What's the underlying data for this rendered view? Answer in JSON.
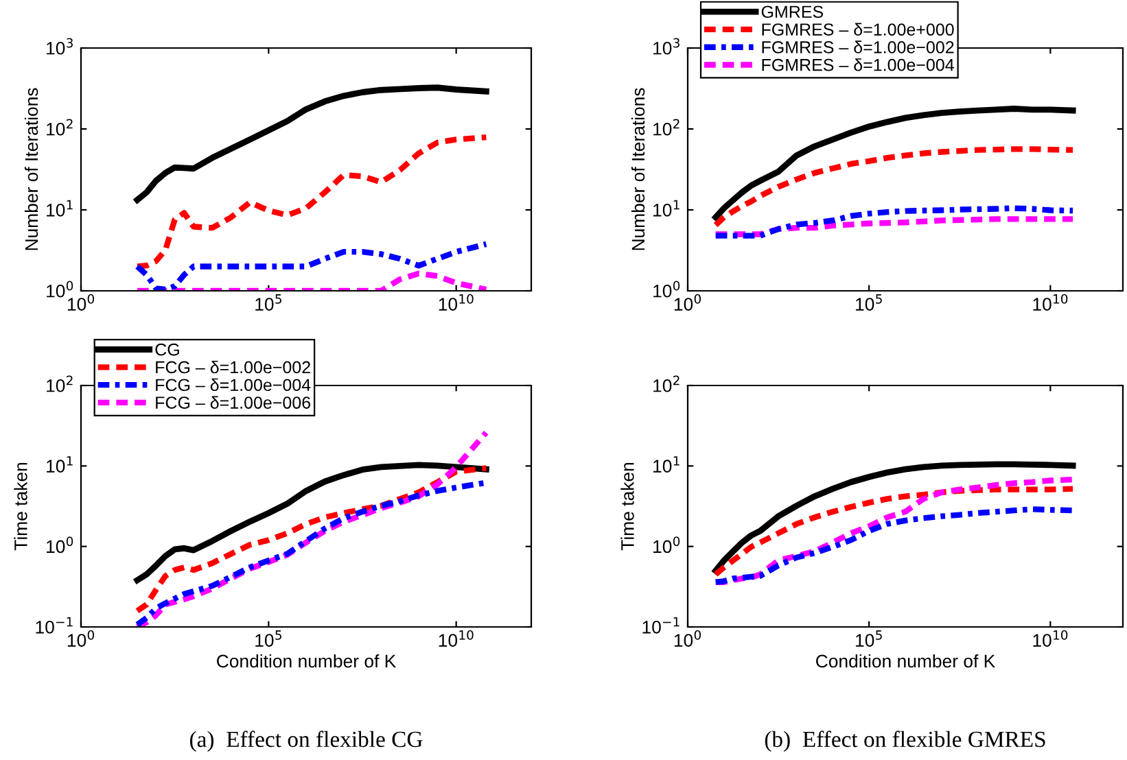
{
  "chart_data": [
    {
      "type": "line",
      "ylabel": "Number of Iterations",
      "log": "xy",
      "xlim": [
        1,
        1000000000000.0
      ],
      "ylim": [
        1,
        1000
      ],
      "xticks": [
        {
          "value": 1,
          "label": "10$^{0}$"
        },
        {
          "value": 100000,
          "label": "10$^{5}$"
        },
        {
          "value": 10000000000,
          "label": "10$^{10}$"
        }
      ],
      "yticks": [
        {
          "value": 1,
          "label": "10$^{0}$"
        },
        {
          "value": 10,
          "label": "10$^{1}$"
        },
        {
          "value": 100,
          "label": "10$^{2}$"
        },
        {
          "value": 1000,
          "label": "10$^{3}$"
        }
      ],
      "x": [
        31.6,
        56.2,
        100,
        178,
        316,
        562,
        1000,
        3162,
        10000,
        31623,
        100000,
        316228,
        1000000,
        3162278,
        10000000,
        31622777,
        100000000,
        316227766,
        1000000000,
        3162277660,
        10000000000,
        63000000000
      ],
      "series": [
        {
          "color": "#000000",
          "line_style": "solid",
          "values": [
            13.3,
            16.5,
            22.9,
            28.6,
            33.4,
            33,
            32.4,
            44,
            57,
            74,
            96,
            125,
            175,
            219,
            256,
            284,
            303,
            311,
            319,
            324,
            307,
            291
          ]
        },
        {
          "color": "#ff0000",
          "line_style": "dashed",
          "values": [
            2.0,
            2.05,
            2.33,
            3.2,
            7.6,
            9.2,
            6.2,
            6.0,
            8.1,
            12.4,
            9.8,
            8.6,
            10.5,
            16.5,
            27,
            26,
            22,
            31,
            50,
            68,
            74,
            79
          ]
        },
        {
          "color": "#0000ff",
          "line_style": "dashdot",
          "values": [
            2.0,
            1.58,
            1.07,
            1.04,
            1.14,
            1.58,
            2.0,
            2.0,
            2.0,
            2.0,
            2.0,
            2.0,
            2.0,
            2.49,
            3.03,
            3.03,
            2.84,
            2.49,
            2.05,
            2.49,
            3.03,
            3.78
          ]
        },
        {
          "color": "#ff00ff",
          "line_style": "dashed",
          "values": [
            1.0,
            1.0,
            1.0,
            1.0,
            1.0,
            1.0,
            1.0,
            1.0,
            1.0,
            1.0,
            1.0,
            1.0,
            1.0,
            1.0,
            1.0,
            1.0,
            1.0,
            1.39,
            1.64,
            1.52,
            1.25,
            1.04
          ]
        }
      ]
    },
    {
      "type": "line",
      "ylabel": "Number of Iterations",
      "log": "xy",
      "xlim": [
        1,
        1000000000000.0
      ],
      "ylim": [
        1,
        1000
      ],
      "legend": "top left",
      "xticks": [
        {
          "value": 1,
          "label": "10$^{0}$"
        },
        {
          "value": 100000,
          "label": "10$^{5}$"
        },
        {
          "value": 10000000000,
          "label": "10$^{10}$"
        }
      ],
      "yticks": [
        {
          "value": 1,
          "label": "10$^{0}$"
        },
        {
          "value": 10,
          "label": "10$^{1}$"
        },
        {
          "value": 100,
          "label": "10$^{2}$"
        },
        {
          "value": 1000,
          "label": "10$^{3}$"
        }
      ],
      "x": [
        5.9,
        10,
        17.8,
        31.6,
        56.2,
        100,
        316,
        1000,
        3162,
        10000,
        31623,
        100000,
        316228,
        1000000,
        3162278,
        10000000,
        31622777,
        100000000,
        316227766,
        1000000000,
        3162277660,
        10000000000,
        41700000000
      ],
      "series": [
        {
          "name": "GMRES",
          "color": "#000000",
          "line_style": "solid",
          "values": [
            8.1,
            10.5,
            13.2,
            16.5,
            20,
            22.9,
            29.7,
            47,
            61,
            74,
            90,
            107,
            122,
            137,
            148,
            158,
            164,
            169,
            173,
            178,
            173,
            173,
            169
          ]
        },
        {
          "name": "FGMRES – δ=1.00e+000",
          "color": "#ff0000",
          "line_style": "dashed",
          "values": [
            6.5,
            8.1,
            9.6,
            11.2,
            12.7,
            14.9,
            19.3,
            23.8,
            28.6,
            32.6,
            37,
            40,
            44,
            47,
            50,
            52,
            53.5,
            55,
            55.6,
            56.4,
            56.4,
            55.6,
            55
          ]
        },
        {
          "name": "FGMRES – δ=1.00e−002",
          "color": "#0000ff",
          "line_style": "dashdot",
          "values": [
            4.8,
            4.8,
            4.8,
            4.8,
            4.8,
            4.8,
            5.8,
            6.6,
            6.9,
            7.4,
            8.4,
            9.0,
            9.4,
            9.7,
            9.8,
            9.9,
            10.1,
            10.2,
            10.3,
            10.5,
            10.3,
            9.9,
            9.8
          ]
        },
        {
          "name": "FGMRES – δ=1.00e−004",
          "color": "#ff00ff",
          "line_style": "dashed",
          "values": [
            5.0,
            5.0,
            5.0,
            5.0,
            5.0,
            5.0,
            5.8,
            6.0,
            6.0,
            6.4,
            6.6,
            6.8,
            6.9,
            7.0,
            7.2,
            7.4,
            7.5,
            7.6,
            7.7,
            7.7,
            7.7,
            7.7,
            7.7
          ]
        }
      ]
    },
    {
      "type": "line",
      "ylabel": "Time taken",
      "xlabel": "Condition number of K",
      "log": "xy",
      "xlim": [
        1,
        1000000000000.0
      ],
      "ylim": [
        0.1,
        100
      ],
      "legend": "top left",
      "annotations": [
        "(a)  Effect on flexible CG"
      ],
      "xticks": [
        {
          "value": 1,
          "label": "10$^{0}$"
        },
        {
          "value": 100000,
          "label": "10$^{5}$"
        },
        {
          "value": 10000000000,
          "label": "10$^{10}$"
        }
      ],
      "yticks": [
        {
          "value": 0.1,
          "label": "10$^{−1}$"
        },
        {
          "value": 1,
          "label": "10$^{0}$"
        },
        {
          "value": 10,
          "label": "10$^{1}$"
        },
        {
          "value": 100,
          "label": "10$^{2}$"
        }
      ],
      "x": [
        31.6,
        56.2,
        100,
        178,
        316,
        562,
        1000,
        3162,
        10000,
        31623,
        100000,
        316228,
        1000000,
        3162278,
        10000000,
        31622777,
        100000000,
        316227766,
        1000000000,
        3162277660,
        10000000000,
        63000000000
      ],
      "series": [
        {
          "name": "CG",
          "color": "#000000",
          "line_style": "solid",
          "values": [
            0.38,
            0.45,
            0.58,
            0.76,
            0.92,
            0.95,
            0.9,
            1.17,
            1.56,
            2.03,
            2.6,
            3.4,
            4.9,
            6.4,
            7.7,
            9.0,
            9.7,
            10.0,
            10.3,
            10.1,
            9.7,
            9.1
          ]
        },
        {
          "name": "FCG – δ=1.00e−002",
          "color": "#ff0000",
          "line_style": "dashed",
          "values": [
            0.158,
            0.19,
            0.29,
            0.43,
            0.51,
            0.55,
            0.51,
            0.62,
            0.81,
            1.05,
            1.2,
            1.46,
            1.9,
            2.3,
            2.6,
            2.9,
            3.2,
            3.9,
            4.7,
            6.3,
            8.5,
            9.4
          ]
        },
        {
          "name": "FCG – δ=1.00e−004",
          "color": "#0000ff",
          "line_style": "dashdot",
          "values": [
            0.107,
            0.13,
            0.17,
            0.197,
            0.225,
            0.257,
            0.277,
            0.325,
            0.42,
            0.55,
            0.67,
            0.81,
            1.17,
            1.67,
            2.25,
            2.7,
            3.2,
            3.65,
            4.3,
            4.9,
            5.4,
            6.2
          ]
        },
        {
          "name": "FCG – δ=1.00e−006",
          "color": "#ff00ff",
          "line_style": "dashed",
          "values": [
            0.1,
            0.114,
            0.14,
            0.19,
            0.205,
            0.22,
            0.24,
            0.3,
            0.4,
            0.53,
            0.64,
            0.79,
            1.12,
            1.56,
            2.03,
            2.45,
            3.0,
            3.5,
            4.2,
            5.9,
            9.7,
            26
          ]
        }
      ]
    },
    {
      "type": "line",
      "ylabel": "Time taken",
      "xlabel": "Condition number of K",
      "log": "xy",
      "xlim": [
        1,
        1000000000000.0
      ],
      "ylim": [
        0.1,
        100
      ],
      "annotations": [
        "(b)  Effect on flexible GMRES"
      ],
      "xticks": [
        {
          "value": 1,
          "label": "10$^{0}$"
        },
        {
          "value": 100000,
          "label": "10$^{5}$"
        },
        {
          "value": 10000000000,
          "label": "10$^{10}$"
        }
      ],
      "yticks": [
        {
          "value": 0.1,
          "label": "10$^{−1}$"
        },
        {
          "value": 1,
          "label": "10$^{0}$"
        },
        {
          "value": 10,
          "label": "10$^{1}$"
        },
        {
          "value": 100,
          "label": "10$^{2}$"
        }
      ],
      "x": [
        5.9,
        10,
        17.8,
        31.6,
        56.2,
        100,
        316,
        1000,
        3162,
        10000,
        31623,
        100000,
        316228,
        1000000,
        3162278,
        10000000,
        31622777,
        100000000,
        316227766,
        1000000000,
        3162277660,
        10000000000,
        41700000000
      ],
      "series": [
        {
          "color": "#000000",
          "line_style": "solid",
          "values": [
            0.5,
            0.67,
            0.87,
            1.12,
            1.37,
            1.56,
            2.37,
            3.2,
            4.2,
            5.2,
            6.3,
            7.3,
            8.3,
            9.1,
            9.7,
            10.1,
            10.3,
            10.4,
            10.5,
            10.5,
            10.4,
            10.3,
            10.1
          ]
        },
        {
          "color": "#ff0000",
          "line_style": "dashed",
          "values": [
            0.45,
            0.55,
            0.67,
            0.81,
            0.99,
            1.12,
            1.46,
            1.9,
            2.3,
            2.7,
            3.1,
            3.5,
            3.9,
            4.2,
            4.4,
            4.7,
            4.9,
            5.0,
            5.1,
            5.1,
            5.1,
            5.1,
            5.2
          ]
        },
        {
          "color": "#0000ff",
          "line_style": "dashdot",
          "values": [
            0.36,
            0.37,
            0.4,
            0.41,
            0.42,
            0.43,
            0.58,
            0.73,
            0.83,
            0.99,
            1.2,
            1.56,
            1.9,
            2.1,
            2.25,
            2.37,
            2.47,
            2.6,
            2.7,
            2.8,
            2.9,
            2.85,
            2.8
          ]
        },
        {
          "color": "#ff00ff",
          "line_style": "dashed",
          "values": [
            0.36,
            0.36,
            0.38,
            0.4,
            0.41,
            0.45,
            0.67,
            0.76,
            0.87,
            1.12,
            1.46,
            1.78,
            2.3,
            2.7,
            3.9,
            4.7,
            5.1,
            5.4,
            5.8,
            6.1,
            6.3,
            6.6,
            6.8
          ]
        }
      ]
    }
  ]
}
